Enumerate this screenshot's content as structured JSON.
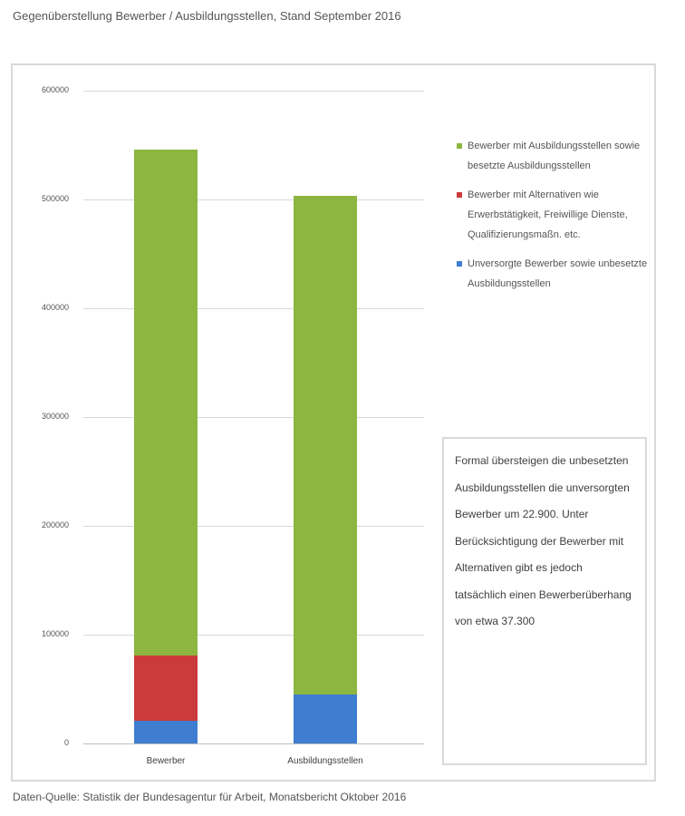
{
  "header": {
    "title": "Gegenüberstellung Bewerber / Ausbildungsstellen, Stand September 2016"
  },
  "footer": {
    "source": "Daten-Quelle: Statistik der Bundesagentur für Arbeit, Monatsbericht Oktober 2016"
  },
  "note": {
    "text": "Formal übersteigen die unbesetzten Ausbildungsstellen die unversorgten Bewerber um 22.900. Unter Berücksichtigung der Bewerber mit Alternativen gibt es jedoch tatsächlich einen Bewerberüberhang von etwa 37.300"
  },
  "colors": {
    "green": "#8db640",
    "red": "#cc3b3b",
    "blue": "#3f7dd0",
    "grid": "#d9d9d9"
  },
  "chart_data": {
    "type": "bar",
    "stacked": true,
    "title": "Gegenüberstellung Bewerber / Ausbildungsstellen, Stand September 2016",
    "xlabel": "",
    "ylabel": "",
    "ylim": [
      0,
      600000
    ],
    "yticks": [
      0,
      100000,
      200000,
      300000,
      400000,
      500000,
      600000
    ],
    "ytick_labels": [
      "0",
      "100000",
      "200000",
      "300000",
      "400000",
      "500000",
      "600000"
    ],
    "grid": true,
    "legend_position": "right",
    "categories": [
      "Bewerber",
      "Ausbildungsstellen"
    ],
    "series": [
      {
        "name": "Unversorgte Bewerber sowie unbesetzte Ausbildungsstellen",
        "color": "#3f7dd0",
        "values": [
          21000,
          45000
        ]
      },
      {
        "name": "Bewerber mit Alternativen wie Erwerbstätigkeit, Freiwillige Dienste, Qualifizierungsmaßn. etc.",
        "color": "#cc3b3b",
        "values": [
          60000,
          0
        ]
      },
      {
        "name": "Bewerber mit Ausbildungsstellen sowie besetzte Ausbildungsstellen",
        "color": "#8db640",
        "values": [
          465000,
          458000
        ]
      }
    ],
    "totals": [
      546000,
      503000
    ],
    "annotations": [
      "Formal übersteigen die unbesetzten Ausbildungsstellen die unversorgten Bewerber um 22.900. Unter Berücksichtigung der Bewerber mit Alternativen gibt es jedoch tatsächlich einen Bewerberüberhang von etwa 37.300"
    ]
  },
  "legend": {
    "items": [
      {
        "label": "Bewerber mit Ausbildungsstellen sowie besetzte Ausbildungsstellen",
        "color": "#8db640"
      },
      {
        "label": "Bewerber mit Alternativen wie Erwerbstätigkeit, Freiwillige Dienste, Qualifizierungsmaßn. etc.",
        "color": "#cc3b3b"
      },
      {
        "label": "Unversorgte Bewerber sowie unbesetzte Ausbildungsstellen",
        "color": "#3f7dd0"
      }
    ]
  }
}
